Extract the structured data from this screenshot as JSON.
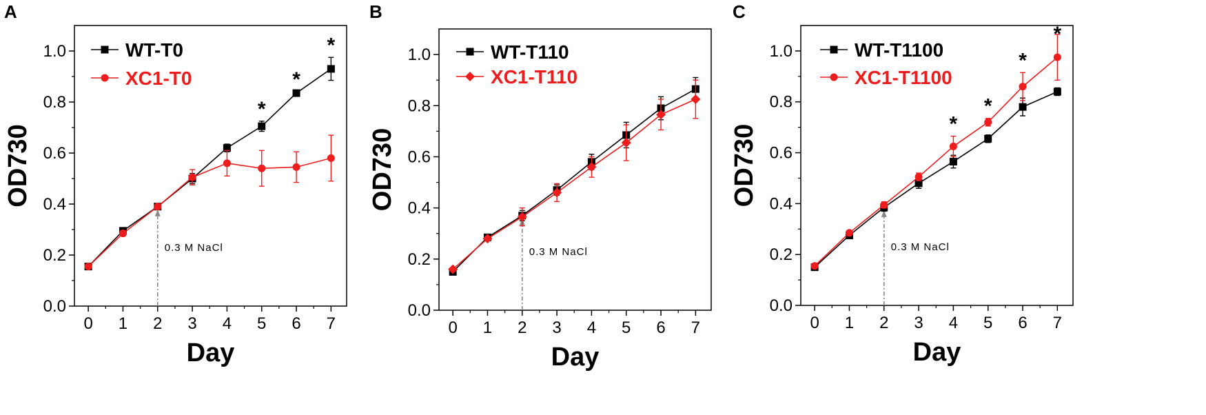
{
  "colors": {
    "wt": "#000000",
    "xc1": "#ee1c1c",
    "arrow": "#888888",
    "axis": "#000000"
  },
  "chart_data": [
    {
      "type": "line",
      "panel_label": "A",
      "xlabel": "Day",
      "ylabel": "OD730",
      "xlim": [
        -0.4,
        7.45
      ],
      "ylim": [
        0.0,
        1.1
      ],
      "x_ticks": [
        "0",
        "1",
        "2",
        "3",
        "4",
        "5",
        "6",
        "7"
      ],
      "y_ticks": [
        "0.0",
        "0.2",
        "0.4",
        "0.6",
        "0.8",
        "1.0"
      ],
      "x": [
        0,
        1,
        2,
        3,
        4,
        5,
        6,
        7
      ],
      "series": [
        {
          "name": "WT-T0",
          "color": "#000000",
          "marker": "square",
          "values": [
            0.155,
            0.295,
            0.39,
            0.5,
            0.62,
            0.705,
            0.835,
            0.93
          ],
          "errors": [
            0.005,
            0.008,
            0.008,
            0.02,
            0.015,
            0.02,
            0.006,
            0.045
          ]
        },
        {
          "name": "XC1-T0",
          "color": "#ee1c1c",
          "marker": "circle",
          "values": [
            0.155,
            0.285,
            0.39,
            0.505,
            0.56,
            0.54,
            0.545,
            0.58
          ],
          "errors": [
            0.005,
            0.01,
            0.008,
            0.03,
            0.05,
            0.07,
            0.06,
            0.09
          ]
        }
      ],
      "significance": {
        "marker": "*",
        "days": [
          5,
          6,
          7
        ]
      },
      "annotation": {
        "text": "0.3 M NaCl",
        "day": 2
      }
    },
    {
      "type": "line",
      "panel_label": "B",
      "xlabel": "Day",
      "ylabel": "OD730",
      "xlim": [
        -0.4,
        7.45
      ],
      "ylim": [
        0.0,
        1.1
      ],
      "x_ticks": [
        "0",
        "1",
        "2",
        "3",
        "4",
        "5",
        "6",
        "7"
      ],
      "y_ticks": [
        "0.0",
        "0.2",
        "0.4",
        "0.6",
        "0.8",
        "1.0"
      ],
      "x": [
        0,
        1,
        2,
        3,
        4,
        5,
        6,
        7
      ],
      "series": [
        {
          "name": "WT-T110",
          "color": "#000000",
          "marker": "square",
          "values": [
            0.15,
            0.285,
            0.37,
            0.47,
            0.58,
            0.685,
            0.79,
            0.865
          ],
          "errors": [
            0.005,
            0.008,
            0.02,
            0.02,
            0.03,
            0.05,
            0.045,
            0.045
          ]
        },
        {
          "name": "XC1-T110",
          "color": "#ee1c1c",
          "marker": "diamond",
          "values": [
            0.16,
            0.28,
            0.365,
            0.46,
            0.56,
            0.655,
            0.765,
            0.825
          ],
          "errors": [
            0.005,
            0.008,
            0.035,
            0.035,
            0.04,
            0.07,
            0.06,
            0.075
          ]
        }
      ],
      "significance": {
        "marker": "*",
        "days": []
      },
      "annotation": {
        "text": "0.3 M NaCl",
        "day": 2
      }
    },
    {
      "type": "line",
      "panel_label": "C",
      "xlabel": "Day",
      "ylabel": "OD730",
      "xlim": [
        -0.4,
        7.45
      ],
      "ylim": [
        0.0,
        1.1
      ],
      "x_ticks": [
        "0",
        "1",
        "2",
        "3",
        "4",
        "5",
        "6",
        "7"
      ],
      "y_ticks": [
        "0.0",
        "0.2",
        "0.4",
        "0.6",
        "0.8",
        "1.0"
      ],
      "x": [
        0,
        1,
        2,
        3,
        4,
        5,
        6,
        7
      ],
      "series": [
        {
          "name": "WT-T1100",
          "color": "#000000",
          "marker": "square",
          "values": [
            0.15,
            0.275,
            0.385,
            0.48,
            0.565,
            0.655,
            0.78,
            0.84
          ],
          "errors": [
            0.008,
            0.008,
            0.015,
            0.02,
            0.025,
            0.015,
            0.035,
            0.015
          ]
        },
        {
          "name": "XC1-T1100",
          "color": "#ee1c1c",
          "marker": "circle",
          "values": [
            0.155,
            0.285,
            0.395,
            0.505,
            0.625,
            0.72,
            0.86,
            0.975
          ],
          "errors": [
            0.008,
            0.008,
            0.012,
            0.015,
            0.04,
            0.015,
            0.055,
            0.09
          ]
        }
      ],
      "significance": {
        "marker": "*",
        "days": [
          4,
          5,
          6,
          7
        ]
      },
      "annotation": {
        "text": "0.3 M NaCl",
        "day": 2
      }
    }
  ]
}
